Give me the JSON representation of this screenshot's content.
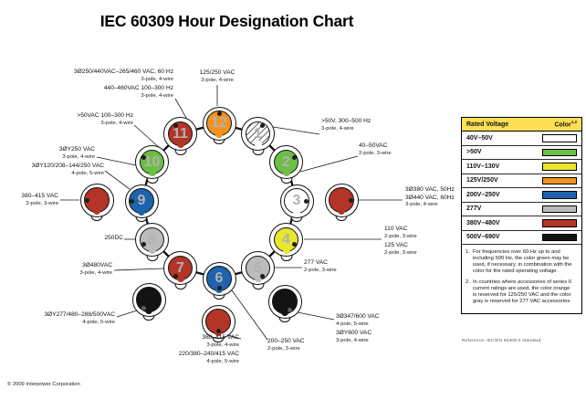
{
  "title": "IEC 60309 Hour Designation Chart",
  "copyright": "© 2009 Interpower Corporation",
  "reference": "Reference: IEC/EN 60309-2 standard",
  "colors": {
    "orange": "#F5911E",
    "red": "#B33527",
    "green": "#6CBE45",
    "blue": "#1E63AD",
    "yellow": "#E8E62F",
    "gray": "#BCBCBE",
    "white": "#FFFFFF",
    "black": "#131313",
    "hatched": "#FFFFFF",
    "legend_header": "#FFDF55"
  },
  "clock": {
    "connectors": [
      {
        "id": "h12",
        "hour": "12",
        "color": "orange"
      },
      {
        "id": "h1",
        "hour": "1",
        "color": "hatched"
      },
      {
        "id": "h2",
        "hour": "2",
        "color": "green"
      },
      {
        "id": "h3",
        "hour": "3",
        "color": "white"
      },
      {
        "id": "h4",
        "hour": "4",
        "color": "yellow"
      },
      {
        "id": "h5",
        "hour": "5",
        "color": "gray"
      },
      {
        "id": "h6",
        "hour": "6",
        "color": "blue"
      },
      {
        "id": "h7",
        "hour": "7",
        "color": "red"
      },
      {
        "id": "h8",
        "hour": "8",
        "color": "gray"
      },
      {
        "id": "h9",
        "hour": "9",
        "color": "blue"
      },
      {
        "id": "h10",
        "hour": "10",
        "color": "green"
      },
      {
        "id": "h11",
        "hour": "11",
        "color": "red"
      },
      {
        "id": "x3",
        "hour": "",
        "color": "red"
      },
      {
        "id": "x9",
        "hour": "",
        "color": "red"
      },
      {
        "id": "x7b",
        "hour": "",
        "color": "black"
      },
      {
        "id": "x5b",
        "hour": "",
        "color": "black"
      },
      {
        "id": "x6b",
        "hour": "",
        "color": "red"
      }
    ],
    "labels": [
      {
        "id": "t11a",
        "lines": [
          "3Ø250/440VAC–265/460 VAC, 60 Hz",
          "3-pole, 4-wire"
        ]
      },
      {
        "id": "t11b",
        "lines": [
          "440–460VAC 100–300 Hz",
          "3-pole, 4-wire"
        ]
      },
      {
        "id": "t12",
        "lines": [
          "125/250 VAC",
          "3-pole, 4-wire"
        ]
      },
      {
        "id": "t1",
        "lines": [
          ">50V, 300–500 Hz",
          "3-pole, 4-wire"
        ]
      },
      {
        "id": "t2",
        "lines": [
          "40–50VAC",
          "2-pole, 3-wire"
        ]
      },
      {
        "id": "tx3",
        "lines": [
          "3Ø380 VAC, 50Hz",
          "3Ø440 VAC, 60Hz",
          "3-pole, 4-wire"
        ]
      },
      {
        "id": "t4",
        "lines": [
          "110 VAC",
          "2-pole, 3-wire",
          "125 VAC",
          "2-pole, 3-wire"
        ]
      },
      {
        "id": "t5",
        "lines": [
          "277 VAC",
          "2-pole, 3-wire"
        ]
      },
      {
        "id": "tx5b",
        "lines": [
          "3Ø347/600 VAC",
          "4-pole, 5-wire",
          "3ØY600 VAC",
          "3-pole, 4-wire"
        ]
      },
      {
        "id": "t6",
        "lines": [
          "200–250 VAC",
          "2-pole, 3-wire"
        ]
      },
      {
        "id": "tx6b",
        "lines": [
          "380–415 VAC",
          "3-pole, 4-wire",
          "220/380–240/415 VAC",
          "4-pole, 5-wire"
        ]
      },
      {
        "id": "tx7b",
        "lines": [
          "3ØY277/480–288/500VAC",
          "4-pole, 5-wire"
        ]
      },
      {
        "id": "t7",
        "lines": [
          "3Ø480VAC",
          "3-pole, 4-wire"
        ]
      },
      {
        "id": "t8",
        "lines": [
          "250DC"
        ]
      },
      {
        "id": "tx9",
        "lines": [
          "380–415 VAC",
          "2-pole, 3-wire"
        ]
      },
      {
        "id": "t9",
        "lines": [
          "3ØY120/208–144/250 VAC",
          "4-pole, 5-wire"
        ]
      },
      {
        "id": "t10b",
        "lines": [
          "3ØY250 VAC",
          "3-pole, 4-wire"
        ]
      },
      {
        "id": "t10a",
        "lines": [
          ">50VAC 100–300 Hz",
          "3-pole, 4-wire"
        ]
      }
    ]
  },
  "legend": {
    "header": {
      "voltage": "Rated Voltage",
      "color": "Color",
      "color_sup": "1,2"
    },
    "rows": [
      {
        "voltage": "40V–50V",
        "swatch": "white"
      },
      {
        "voltage": ">50V",
        "swatch": "green"
      },
      {
        "voltage": "110V–130V",
        "swatch": "yellow"
      },
      {
        "voltage": "125V/250V",
        "swatch": "orange"
      },
      {
        "voltage": "200V–250V",
        "swatch": "blue"
      },
      {
        "voltage": "277V",
        "swatch": "gray"
      },
      {
        "voltage": "380V–480V",
        "swatch": "red"
      },
      {
        "voltage": "500V–690V",
        "swatch": "black"
      }
    ],
    "notes": [
      "For frequencies over 60 Hz up to and including 500 Hz, the color green may be used, if necessary, in combination with the color for the rated operating voltage.",
      "In countries where accessories of series II current ratings are used, the color orange is reserved for 125/250 VAC and the color gray is reserved for 277 VAC accessories."
    ]
  }
}
